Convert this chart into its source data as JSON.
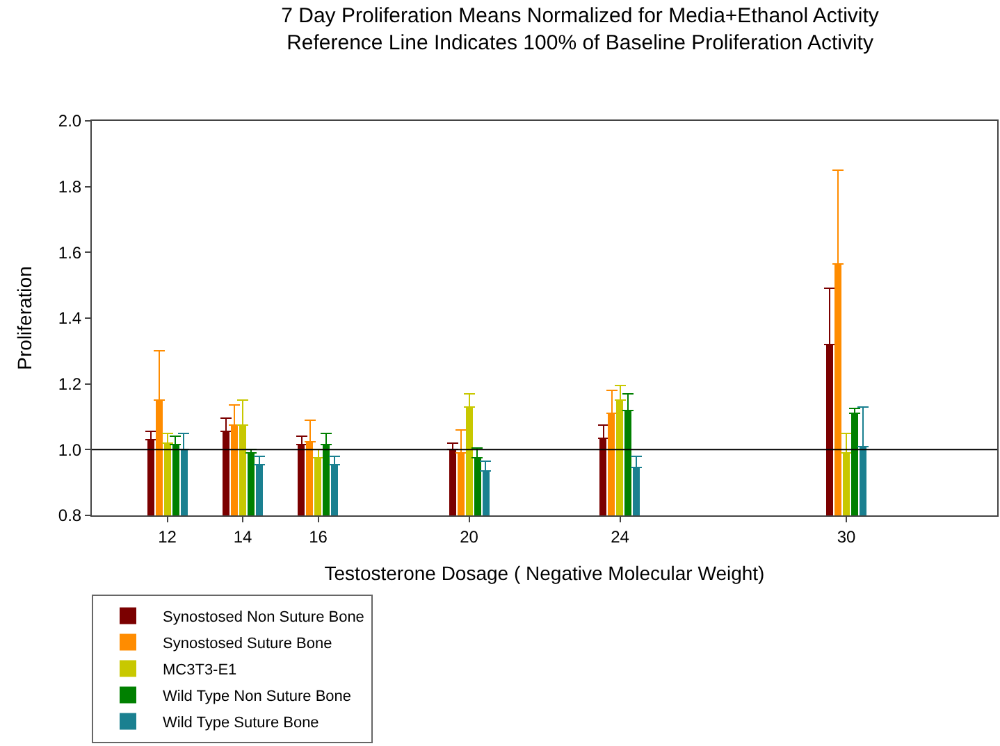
{
  "chart_data": {
    "type": "bar",
    "title": "7 Day Proliferation Means Normalized for Media+Ethanol Activity",
    "subtitle": "Reference Line Indicates 100% of Baseline Proliferation Activity",
    "xlabel": "Testosterone Dosage ( Negative Molecular Weight)",
    "ylabel": "Proliferation",
    "x": [
      12,
      14,
      16,
      20,
      24,
      30
    ],
    "series": [
      {
        "name": "Synostosed Non Suture Bone",
        "color": "#7b0000",
        "values": [
          1.03,
          1.055,
          1.015,
          1.0,
          1.035,
          1.32
        ],
        "errors": [
          [
            1.03,
            1.055
          ],
          [
            1.055,
            1.095
          ],
          [
            1.015,
            1.04
          ],
          [
            1.0,
            1.02
          ],
          [
            1.035,
            1.075
          ],
          [
            1.32,
            1.49
          ]
        ]
      },
      {
        "name": "Synostosed Suture Bone",
        "color": "#ff8c00",
        "values": [
          1.15,
          1.075,
          1.025,
          0.99,
          1.11,
          1.565
        ],
        "errors": [
          [
            1.15,
            1.3
          ],
          [
            1.075,
            1.135
          ],
          [
            1.025,
            1.09
          ],
          [
            0.99,
            1.06
          ],
          [
            1.11,
            1.18
          ],
          [
            1.565,
            1.85
          ]
        ]
      },
      {
        "name": "MC3T3-E1",
        "color": "#c8c800",
        "values": [
          1.02,
          1.075,
          0.975,
          1.13,
          1.15,
          0.99
        ],
        "errors": [
          [
            1.02,
            1.05
          ],
          [
            1.075,
            1.15
          ],
          [
            0.975,
            1.0
          ],
          [
            1.13,
            1.17
          ],
          [
            1.15,
            1.195
          ],
          [
            0.99,
            1.05
          ]
        ]
      },
      {
        "name": "Wild Type Non Suture Bone",
        "color": "#008000",
        "values": [
          1.015,
          0.99,
          1.015,
          0.975,
          1.12,
          1.11
        ],
        "errors": [
          [
            1.015,
            1.04
          ],
          [
            0.99,
            1.0
          ],
          [
            1.015,
            1.05
          ],
          [
            0.975,
            1.005
          ],
          [
            1.12,
            1.17
          ],
          [
            1.11,
            1.125
          ]
        ]
      },
      {
        "name": "Wild Type Suture Bone",
        "color": "#1a8090",
        "values": [
          1.0,
          0.955,
          0.955,
          0.935,
          0.945,
          1.01
        ],
        "errors": [
          [
            1.0,
            1.05
          ],
          [
            0.955,
            0.98
          ],
          [
            0.955,
            0.98
          ],
          [
            0.935,
            0.965
          ],
          [
            0.945,
            0.98
          ],
          [
            1.01,
            1.13
          ]
        ]
      }
    ],
    "xlim": [
      10,
      34
    ],
    "xticks": [
      12,
      14,
      16,
      20,
      24,
      30
    ],
    "ylim": [
      0.8,
      2.0
    ],
    "yticks": [
      {
        "value": 0.8,
        "label": "0.8"
      },
      {
        "value": 1.0,
        "label": "1.0"
      },
      {
        "value": 1.2,
        "label": "1.2"
      },
      {
        "value": 1.4,
        "label": "1.4"
      },
      {
        "value": 1.6,
        "label": "1.6"
      },
      {
        "value": 1.8,
        "label": "1.8"
      },
      {
        "value": 2.0,
        "label": "2.0"
      }
    ],
    "ref_lines": [
      {
        "axis": "y",
        "value": 1.0,
        "color": "#000000"
      }
    ],
    "legend": "bottom left"
  }
}
